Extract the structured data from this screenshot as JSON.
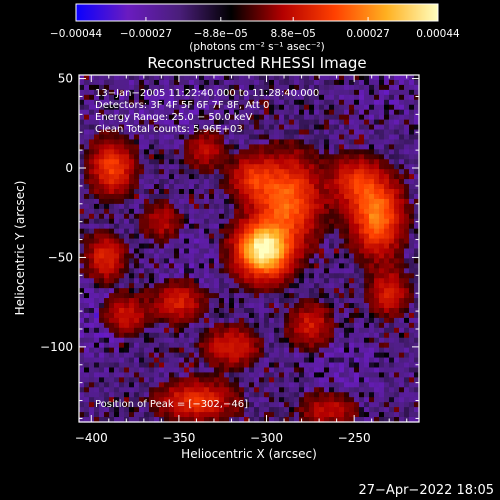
{
  "chart_data": {
    "type": "heatmap",
    "title": "Reconstructed RHESSI Image",
    "xlabel": "Heliocentric X (arcsec)",
    "ylabel": "Heliocentric Y (arcsec)",
    "xlim": [
      -407,
      -213
    ],
    "ylim": [
      -142,
      52
    ],
    "x_ticks": [
      -400,
      -350,
      -300,
      -250
    ],
    "y_ticks": [
      50,
      0,
      -50,
      -100
    ],
    "x_tick_labels": [
      "−400",
      "−350",
      "−300",
      "−250"
    ],
    "y_tick_labels": [
      "50",
      "0",
      "−50",
      "−100"
    ],
    "colorbar": {
      "range": [
        -0.00044,
        0.00044
      ],
      "tick_values": [
        -0.00044,
        -0.00027,
        -8.8e-05,
        8.8e-05,
        0.00027,
        0.00044
      ],
      "tick_labels": [
        "−0.00044",
        "−0.00027",
        "−8.8e−05",
        "8.8e−05",
        "0.00027",
        "0.00044"
      ],
      "unit_label": "(photons cm⁻² s⁻¹ asec⁻²)",
      "colors": [
        "#0a00ff",
        "#6a1cc0",
        "#4a1e7a",
        "#000000",
        "#b40000",
        "#ff4000",
        "#ffb020",
        "#ffffc0"
      ]
    },
    "annotations": [
      "13−Jan−2005 11:22:40.000 to 11:28:40.000",
      "Detectors: 3F 4F 5F 6F 7F 8F, Att 0",
      "Energy Range: 25.0 − 50.0 keV",
      "Clean    Total counts: 5.96E+03"
    ],
    "peak_label": "Position of Peak = [−302,−46]",
    "peak": [
      -302,
      -46
    ],
    "sources": [
      {
        "x": -302,
        "y": -46,
        "sx": 10,
        "sy": 10,
        "amp": 1.0
      },
      {
        "x": -288,
        "y": -18,
        "sx": 12,
        "sy": 16,
        "amp": 0.55
      },
      {
        "x": -308,
        "y": -6,
        "sx": 8,
        "sy": 8,
        "amp": 0.35
      },
      {
        "x": -237,
        "y": -27,
        "sx": 9,
        "sy": 14,
        "amp": 0.62
      },
      {
        "x": -250,
        "y": -8,
        "sx": 9,
        "sy": 9,
        "amp": 0.35
      },
      {
        "x": -388,
        "y": 0,
        "sx": 8,
        "sy": 10,
        "amp": 0.45
      },
      {
        "x": -392,
        "y": -50,
        "sx": 7,
        "sy": 8,
        "amp": 0.35
      },
      {
        "x": -350,
        "y": -75,
        "sx": 9,
        "sy": 7,
        "amp": 0.32
      },
      {
        "x": -380,
        "y": -82,
        "sx": 8,
        "sy": 7,
        "amp": 0.28
      },
      {
        "x": -320,
        "y": -100,
        "sx": 10,
        "sy": 7,
        "amp": 0.33
      },
      {
        "x": -340,
        "y": -130,
        "sx": 14,
        "sy": 7,
        "amp": 0.4
      },
      {
        "x": -275,
        "y": -88,
        "sx": 8,
        "sy": 8,
        "amp": 0.3
      },
      {
        "x": -230,
        "y": -70,
        "sx": 7,
        "sy": 8,
        "amp": 0.32
      },
      {
        "x": -265,
        "y": -135,
        "sx": 10,
        "sy": 6,
        "amp": 0.25
      },
      {
        "x": -335,
        "y": 10,
        "sx": 7,
        "sy": 7,
        "amp": 0.25
      },
      {
        "x": -360,
        "y": -30,
        "sx": 7,
        "sy": 7,
        "amp": 0.22
      }
    ],
    "negative_regions": [
      {
        "x": -395,
        "y": -85,
        "sx": 10,
        "sy": 14,
        "amp": 0.8
      },
      {
        "x": -355,
        "y": 35,
        "sx": 25,
        "sy": 12,
        "amp": 0.6
      },
      {
        "x": -230,
        "y": 40,
        "sx": 18,
        "sy": 12,
        "amp": 0.6
      },
      {
        "x": -255,
        "y": -110,
        "sx": 18,
        "sy": 14,
        "amp": 0.6
      },
      {
        "x": -345,
        "y": -50,
        "sx": 14,
        "sy": 18,
        "amp": 0.5
      }
    ]
  },
  "timestamp": "27−Apr−2022 18:05"
}
